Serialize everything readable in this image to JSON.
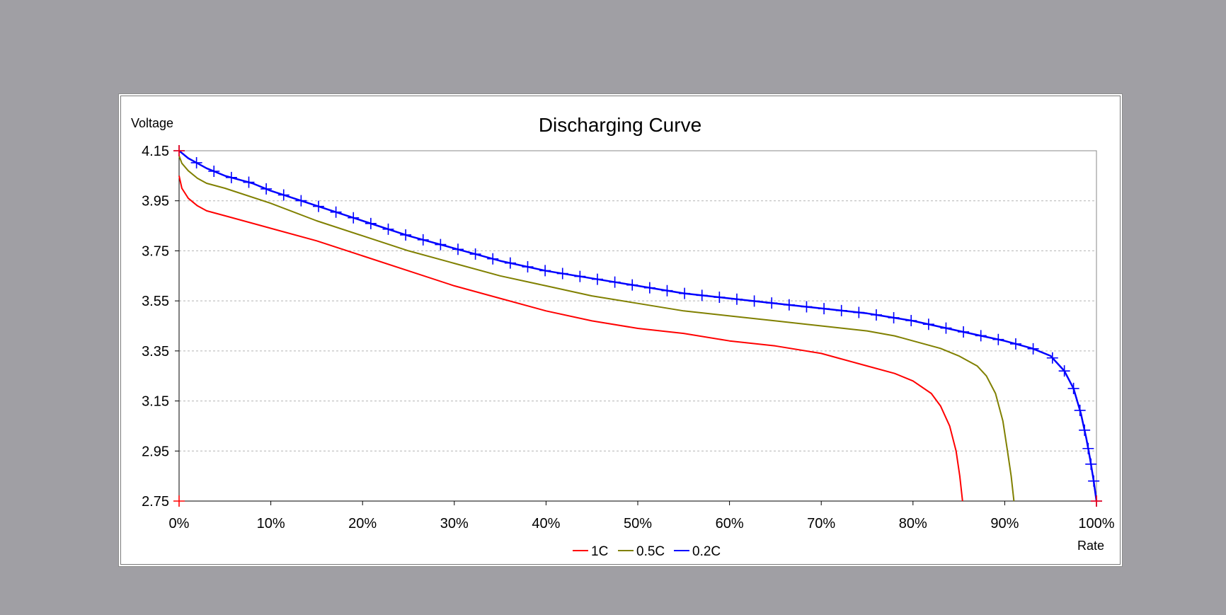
{
  "chart_data": {
    "type": "line",
    "title": "Discharging Curve",
    "ylabel": "Voltage",
    "xlabel": "Rate",
    "xlim": [
      0,
      100
    ],
    "ylim": [
      2.75,
      4.15
    ],
    "x_ticks": [
      "0%",
      "10%",
      "20%",
      "30%",
      "40%",
      "50%",
      "60%",
      "70%",
      "80%",
      "90%",
      "100%"
    ],
    "y_ticks": [
      "4.15",
      "3.95",
      "3.75",
      "3.55",
      "3.35",
      "3.15",
      "2.95",
      "2.75"
    ],
    "grid": "horizontal dashed",
    "legend_position": "bottom",
    "series": [
      {
        "name": "1C",
        "color": "#ff0000",
        "x": [
          0,
          0.3,
          1,
          2,
          3,
          5,
          8,
          10,
          15,
          20,
          25,
          30,
          35,
          40,
          45,
          50,
          55,
          60,
          65,
          70,
          72,
          75,
          78,
          80,
          82,
          83,
          84,
          84.7,
          85.1,
          85.4
        ],
        "y": [
          4.05,
          4.0,
          3.96,
          3.93,
          3.91,
          3.89,
          3.86,
          3.84,
          3.79,
          3.73,
          3.67,
          3.61,
          3.56,
          3.51,
          3.47,
          3.44,
          3.42,
          3.39,
          3.37,
          3.34,
          3.32,
          3.29,
          3.26,
          3.23,
          3.18,
          3.13,
          3.05,
          2.95,
          2.85,
          2.75
        ]
      },
      {
        "name": "0.5C",
        "color": "#808000",
        "x": [
          0,
          0.3,
          1,
          2,
          3,
          5,
          10,
          15,
          20,
          25,
          30,
          35,
          40,
          45,
          50,
          55,
          60,
          65,
          70,
          75,
          78,
          80,
          83,
          85,
          87,
          88,
          89,
          89.8,
          90.3,
          90.7,
          91.0
        ],
        "y": [
          4.13,
          4.1,
          4.07,
          4.04,
          4.02,
          4.0,
          3.94,
          3.87,
          3.81,
          3.75,
          3.7,
          3.65,
          3.61,
          3.57,
          3.54,
          3.51,
          3.49,
          3.47,
          3.45,
          3.43,
          3.41,
          3.39,
          3.36,
          3.33,
          3.29,
          3.25,
          3.18,
          3.07,
          2.95,
          2.85,
          2.75
        ]
      },
      {
        "name": "0.2C",
        "color": "#0000ff",
        "x": [
          0,
          1,
          2,
          3,
          5,
          8,
          10,
          15,
          20,
          25,
          30,
          35,
          40,
          45,
          50,
          55,
          60,
          65,
          70,
          75,
          80,
          85,
          90,
          93,
          95,
          96.5,
          97.5,
          98.3,
          98.9,
          99.3,
          99.7,
          100
        ],
        "y": [
          4.15,
          4.12,
          4.1,
          4.08,
          4.05,
          4.02,
          3.99,
          3.93,
          3.87,
          3.81,
          3.76,
          3.71,
          3.67,
          3.64,
          3.61,
          3.58,
          3.56,
          3.54,
          3.52,
          3.5,
          3.47,
          3.43,
          3.39,
          3.36,
          3.33,
          3.27,
          3.2,
          3.1,
          3.0,
          2.92,
          2.83,
          2.75
        ]
      }
    ]
  }
}
